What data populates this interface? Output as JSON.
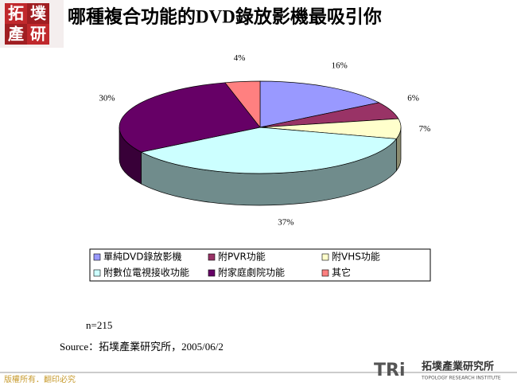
{
  "header": {
    "logo": [
      "拓",
      "墣",
      "產",
      "研"
    ]
  },
  "chart_data": {
    "type": "pie",
    "title": "哪種複合功能的DVD錄放影機最吸引你",
    "categories": [
      "單純DVD錄放影機",
      "附PVR功能",
      "附VHS功能",
      "附數位電視接收功能",
      "附家庭劇院功能",
      "其它"
    ],
    "values": [
      16,
      6,
      7,
      37,
      30,
      4
    ],
    "value_labels": [
      "16%",
      "6%",
      "7%",
      "37%",
      "30%",
      "4%"
    ],
    "colors": [
      "#9999ff",
      "#993366",
      "#ffffcc",
      "#ccffff",
      "#660066",
      "#ff8080"
    ],
    "legend": "bottom"
  },
  "notes": {
    "sample": "n=215",
    "source": "Source：拓墣產業研究所，2005/06/2"
  },
  "footer": {
    "copyright": "版權所有．翻印必究",
    "brand": "TRi",
    "company": "拓墣產業研究所",
    "company_en": "TOPOLOGY RESEARCH INSTITUTE"
  }
}
